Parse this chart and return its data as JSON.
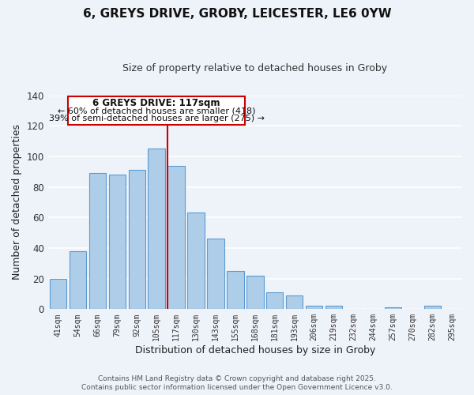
{
  "title": "6, GREYS DRIVE, GROBY, LEICESTER, LE6 0YW",
  "subtitle": "Size of property relative to detached houses in Groby",
  "xlabel": "Distribution of detached houses by size in Groby",
  "ylabel": "Number of detached properties",
  "categories": [
    "41sqm",
    "54sqm",
    "66sqm",
    "79sqm",
    "92sqm",
    "105sqm",
    "117sqm",
    "130sqm",
    "143sqm",
    "155sqm",
    "168sqm",
    "181sqm",
    "193sqm",
    "206sqm",
    "219sqm",
    "232sqm",
    "244sqm",
    "257sqm",
    "270sqm",
    "282sqm",
    "295sqm"
  ],
  "values": [
    20,
    38,
    89,
    88,
    91,
    105,
    94,
    63,
    46,
    25,
    22,
    11,
    9,
    2,
    2,
    0,
    0,
    1,
    0,
    2,
    0
  ],
  "bar_color": "#aecde8",
  "bar_edge_color": "#5b9bd5",
  "vline_color": "#cc0000",
  "ylim": [
    0,
    140
  ],
  "yticks": [
    0,
    20,
    40,
    60,
    80,
    100,
    120,
    140
  ],
  "annotation_title": "6 GREYS DRIVE: 117sqm",
  "annotation_line1": "← 60% of detached houses are smaller (418)",
  "annotation_line2": "39% of semi-detached houses are larger (275) →",
  "footer1": "Contains HM Land Registry data © Crown copyright and database right 2025.",
  "footer2": "Contains public sector information licensed under the Open Government Licence v3.0.",
  "bg_color": "#eef2f9",
  "plot_bg_color": "#eef2f9",
  "vline_index": 6
}
